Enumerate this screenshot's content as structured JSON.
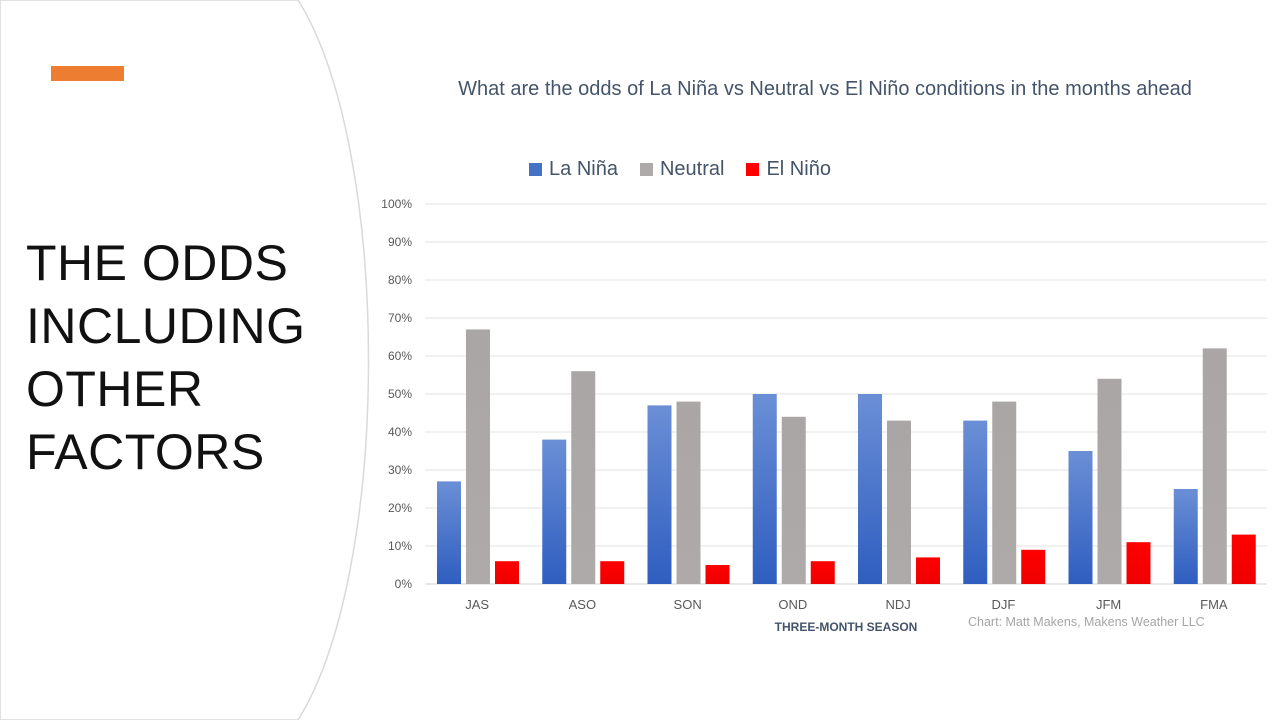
{
  "slide": {
    "title_lines": [
      "THE ODDS",
      "INCLUDING",
      "OTHER",
      "FACTORS"
    ],
    "accent_color": "#ed7d31",
    "swoosh_color": "#d9d9d9"
  },
  "chart_data": {
    "type": "bar",
    "title": "What are the odds of La Niña vs Neutral vs El Niño conditions in the months ahead",
    "xlabel": "THREE-MONTH SEASON",
    "ylabel": "",
    "ylim": [
      0,
      100
    ],
    "y_ticks": [
      "0%",
      "10%",
      "20%",
      "30%",
      "40%",
      "50%",
      "60%",
      "70%",
      "80%",
      "90%",
      "100%"
    ],
    "categories": [
      "JAS",
      "ASO",
      "SON",
      "OND",
      "NDJ",
      "DJF",
      "JFM",
      "FMA"
    ],
    "series": [
      {
        "name": "La Niña",
        "color": "#4472c4",
        "values": [
          27,
          38,
          47,
          50,
          50,
          43,
          35,
          25
        ]
      },
      {
        "name": "Neutral",
        "color": "#aeaaaa",
        "values": [
          67,
          56,
          48,
          44,
          43,
          48,
          54,
          62
        ]
      },
      {
        "name": "El Niño",
        "color": "#ff0000",
        "values": [
          6,
          6,
          5,
          6,
          7,
          9,
          11,
          13
        ]
      }
    ],
    "grid": true,
    "legend_position": "top",
    "annotation": "Chart: Matt Makens, Makens Weather LLC"
  }
}
